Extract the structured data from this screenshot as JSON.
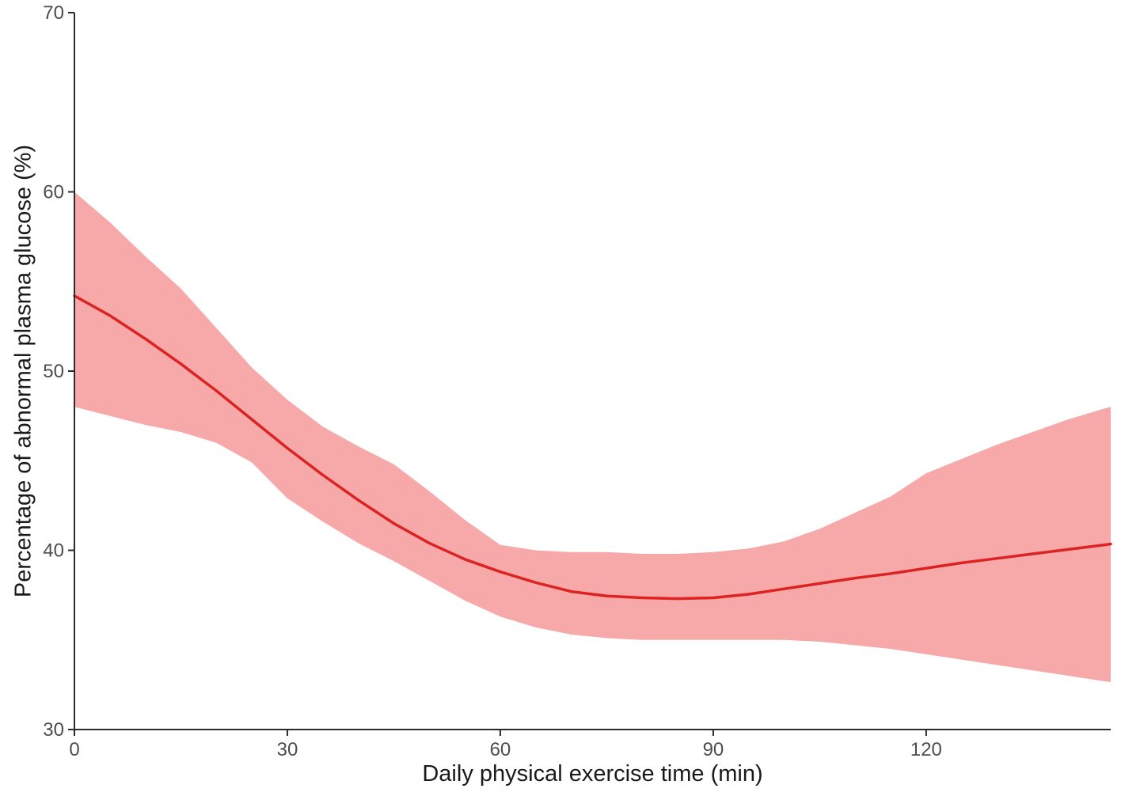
{
  "chart_data": {
    "type": "line",
    "title": "",
    "xlabel": "Daily physical exercise time (min)",
    "ylabel": "Percentage of abnormal plasma glucose (%)",
    "xlim": [
      0,
      146
    ],
    "ylim": [
      30,
      70
    ],
    "x_ticks": [
      0,
      30,
      60,
      90,
      120
    ],
    "y_ticks": [
      30,
      40,
      50,
      60,
      70
    ],
    "grid": false,
    "legend_position": "none",
    "band_color": "#f7a8a8",
    "line_color": "#dc2323",
    "axis_color": "#2b2b2b",
    "tick_label_color": "#4d4d4d",
    "x": [
      0,
      5,
      10,
      15,
      20,
      25,
      30,
      35,
      40,
      45,
      50,
      55,
      60,
      65,
      70,
      75,
      80,
      85,
      90,
      95,
      100,
      105,
      110,
      115,
      120,
      125,
      130,
      135,
      140,
      145,
      146
    ],
    "series": [
      {
        "name": "fitted-line",
        "role": "fit",
        "values": [
          54.2,
          53.1,
          51.8,
          50.4,
          48.9,
          47.3,
          45.7,
          44.2,
          42.8,
          41.5,
          40.4,
          39.5,
          38.8,
          38.2,
          37.7,
          37.45,
          37.35,
          37.3,
          37.35,
          37.55,
          37.85,
          38.15,
          38.45,
          38.7,
          39.0,
          39.3,
          39.55,
          39.8,
          40.05,
          40.3,
          40.35
        ]
      },
      {
        "name": "ci-upper",
        "role": "band-upper",
        "values": [
          60.0,
          58.3,
          56.4,
          54.6,
          52.4,
          50.2,
          48.4,
          46.9,
          45.8,
          44.8,
          43.3,
          41.7,
          40.3,
          40.0,
          39.9,
          39.9,
          39.8,
          39.8,
          39.9,
          40.1,
          40.5,
          41.2,
          42.1,
          43.0,
          44.3,
          45.1,
          45.9,
          46.6,
          47.3,
          47.9,
          48.0
        ]
      },
      {
        "name": "ci-lower",
        "role": "band-lower",
        "values": [
          48.0,
          47.5,
          47.0,
          46.6,
          46.0,
          44.9,
          42.9,
          41.6,
          40.4,
          39.4,
          38.3,
          37.2,
          36.3,
          35.7,
          35.3,
          35.1,
          35.0,
          35.0,
          35.0,
          35.0,
          35.0,
          34.9,
          34.7,
          34.5,
          34.2,
          33.9,
          33.6,
          33.3,
          33.0,
          32.7,
          32.65
        ]
      }
    ]
  }
}
